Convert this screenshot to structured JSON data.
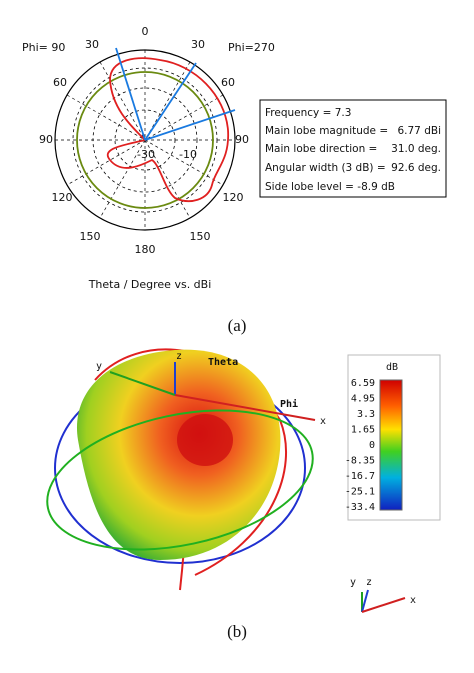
{
  "polar": {
    "phi_left": "Phi= 90",
    "phi_right": "Phi=270",
    "left_angles": [
      "30",
      "60",
      "90",
      "120",
      "150"
    ],
    "right_angles": [
      "30",
      "60",
      "90",
      "120",
      "150"
    ],
    "top_angle": "0",
    "bottom_angle": "180",
    "radial_labels": [
      "-30",
      "-10"
    ],
    "axis_caption": "Theta / Degree vs. dBi",
    "info": [
      "Frequency = 7.3",
      "Main lobe magnitude =",
      "6.77 dBi",
      "Main lobe direction =",
      "31.0 deg.",
      "Angular width (3 dB) =",
      "92.6 deg.",
      "Side lobe level =",
      "-8.9 dB"
    ]
  },
  "caption_a": "(a)",
  "pattern3d": {
    "axis_z": "z",
    "axis_y": "y",
    "axis_x": "x",
    "theta": "Theta",
    "phi": "Phi",
    "colorbar_title": "dB",
    "colorbar_labels": [
      "6.59",
      "4.95",
      "3.3",
      "1.65",
      "0",
      "-8.35",
      "-16.7",
      "-25.1",
      "-33.4"
    ],
    "mini_y": "y",
    "mini_z": "z",
    "mini_x": "x"
  },
  "caption_b": "(b)"
}
